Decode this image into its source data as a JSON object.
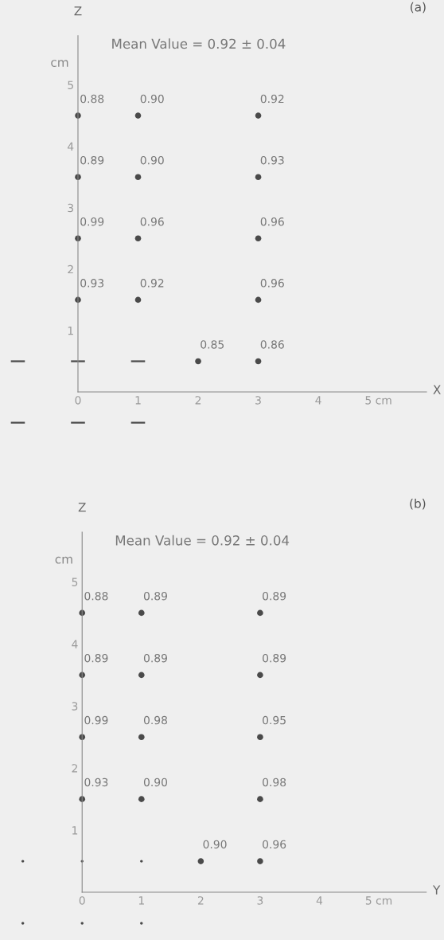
{
  "chart_data": [
    {
      "type": "scatter",
      "title": "(a)",
      "subtitle": "Mean Value = 0.92 ± 0.04",
      "xlabel": "X",
      "ylabel": "Z",
      "grid": false,
      "xlim": [
        0,
        5.8
      ],
      "ylim": [
        0,
        5.8
      ],
      "xticks": [
        0,
        1,
        2,
        3,
        4,
        {
          "value": 5,
          "label": "5 cm"
        }
      ],
      "yticks": [
        1,
        2,
        3,
        4,
        5
      ],
      "series": [
        {
          "color": "#4a4a4a",
          "marker": "circle",
          "x": [
            0,
            1,
            3,
            0,
            1,
            3,
            0,
            1,
            3,
            0,
            1,
            3,
            2,
            3
          ],
          "values": [
            4.5,
            4.5,
            4.5,
            3.5,
            3.5,
            3.5,
            2.5,
            2.5,
            2.5,
            1.5,
            1.5,
            1.5,
            0.5,
            0.5
          ]
        }
      ],
      "annotations": [
        "cm",
        {
          "text": "0.88",
          "x": 0,
          "y": 4.5
        },
        {
          "text": "0.90",
          "x": 1,
          "y": 4.5
        },
        {
          "text": "0.92",
          "x": 3,
          "y": 4.5
        },
        {
          "text": "0.89",
          "x": 0,
          "y": 3.5
        },
        {
          "text": "0.90",
          "x": 1,
          "y": 3.5
        },
        {
          "text": "0.93",
          "x": 3,
          "y": 3.5
        },
        {
          "text": "0.99",
          "x": 0,
          "y": 2.5
        },
        {
          "text": "0.96",
          "x": 1,
          "y": 2.5
        },
        {
          "text": "0.96",
          "x": 3,
          "y": 2.5
        },
        {
          "text": "0.93",
          "x": 0,
          "y": 1.5
        },
        {
          "text": "0.92",
          "x": 1,
          "y": 1.5
        },
        {
          "text": "0.96",
          "x": 3,
          "y": 1.5
        },
        {
          "text": "0.85",
          "x": 2,
          "y": 0.5
        },
        {
          "text": "0.86",
          "x": 3,
          "y": 0.5
        }
      ]
    },
    {
      "type": "scatter",
      "title": "(b)",
      "subtitle": "Mean Value = 0.92 ± 0.04",
      "xlabel": "Y",
      "ylabel": "Z",
      "grid": false,
      "xlim": [
        0,
        5.8
      ],
      "ylim": [
        0,
        5.8
      ],
      "xticks": [
        0,
        1,
        2,
        3,
        4,
        {
          "value": 5,
          "label": "5 cm"
        }
      ],
      "yticks": [
        1,
        2,
        3,
        4,
        5
      ],
      "series": [
        {
          "color": "#4a4a4a",
          "marker": "circle",
          "x": [
            0,
            1,
            3,
            0,
            1,
            3,
            0,
            1,
            3,
            0,
            1,
            3,
            2,
            3
          ],
          "values": [
            4.5,
            4.5,
            4.5,
            3.5,
            3.5,
            3.5,
            2.5,
            2.5,
            2.5,
            1.5,
            1.5,
            1.5,
            0.5,
            0.5
          ]
        }
      ],
      "annotations": [
        "cm",
        {
          "text": "0.88",
          "x": 0,
          "y": 4.5
        },
        {
          "text": "0.89",
          "x": 1,
          "y": 4.5
        },
        {
          "text": "0.89",
          "x": 3,
          "y": 4.5
        },
        {
          "text": "0.89",
          "x": 0,
          "y": 3.5
        },
        {
          "text": "0.89",
          "x": 1,
          "y": 3.5
        },
        {
          "text": "0.89",
          "x": 3,
          "y": 3.5
        },
        {
          "text": "0.99",
          "x": 0,
          "y": 2.5
        },
        {
          "text": "0.98",
          "x": 1,
          "y": 2.5
        },
        {
          "text": "0.95",
          "x": 3,
          "y": 2.5
        },
        {
          "text": "0.93",
          "x": 0,
          "y": 1.5
        },
        {
          "text": "0.90",
          "x": 1,
          "y": 1.5
        },
        {
          "text": "0.98",
          "x": 3,
          "y": 1.5
        },
        {
          "text": "0.90",
          "x": 2,
          "y": 0.5
        },
        {
          "text": "0.96",
          "x": 3,
          "y": 0.5
        }
      ]
    }
  ]
}
